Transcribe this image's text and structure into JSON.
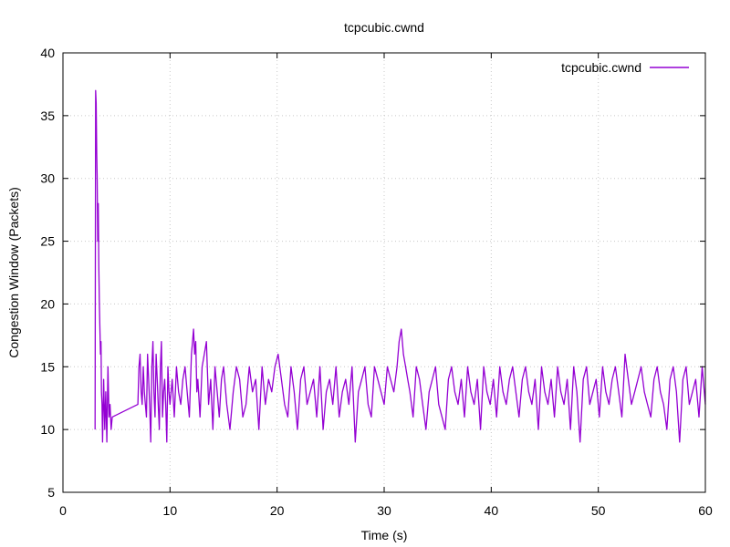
{
  "chart_data": {
    "type": "line",
    "title": "tcpcubic.cwnd",
    "xlabel": "Time (s)",
    "ylabel": "Congestion Window (Packets)",
    "xlim": [
      0,
      60
    ],
    "ylim": [
      5,
      40
    ],
    "xticks": [
      0,
      10,
      20,
      30,
      40,
      50,
      60
    ],
    "yticks": [
      5,
      10,
      15,
      20,
      25,
      30,
      35,
      40
    ],
    "grid": true,
    "legend_position": "top-right",
    "colors": {
      "series": "#9400d3",
      "grid": "#c8c8c8",
      "axis": "#000000"
    },
    "series": [
      {
        "name": "tcpcubic.cwnd",
        "x": [
          3.0,
          3.05,
          3.1,
          3.15,
          3.2,
          3.25,
          3.3,
          3.35,
          3.4,
          3.45,
          3.5,
          3.55,
          3.6,
          3.65,
          3.7,
          3.8,
          3.9,
          4.0,
          4.1,
          4.2,
          4.3,
          4.4,
          4.5,
          4.6,
          7.0,
          7.1,
          7.2,
          7.3,
          7.4,
          7.5,
          7.6,
          7.7,
          7.8,
          7.9,
          8.0,
          8.1,
          8.2,
          8.3,
          8.4,
          8.5,
          8.6,
          8.7,
          8.8,
          8.9,
          9.0,
          9.1,
          9.2,
          9.3,
          9.4,
          9.5,
          9.6,
          9.7,
          9.8,
          9.9,
          10.0,
          10.2,
          10.4,
          10.6,
          10.8,
          11.0,
          11.2,
          11.4,
          11.6,
          11.8,
          12.0,
          12.1,
          12.2,
          12.3,
          12.4,
          12.5,
          12.6,
          12.8,
          13.0,
          13.2,
          13.4,
          13.6,
          13.8,
          14.0,
          14.2,
          14.4,
          14.6,
          14.8,
          15.0,
          15.3,
          15.6,
          15.9,
          16.2,
          16.5,
          16.8,
          17.1,
          17.4,
          17.7,
          18.0,
          18.3,
          18.6,
          18.9,
          19.2,
          19.5,
          19.8,
          20.1,
          20.4,
          20.7,
          21.0,
          21.3,
          21.6,
          21.9,
          22.2,
          22.5,
          22.8,
          23.1,
          23.4,
          23.7,
          24.0,
          24.3,
          24.6,
          24.9,
          25.2,
          25.5,
          25.8,
          26.1,
          26.4,
          26.7,
          27.0,
          27.3,
          27.6,
          27.9,
          28.2,
          28.5,
          28.8,
          29.1,
          29.4,
          29.7,
          30.0,
          30.3,
          30.6,
          30.9,
          31.2,
          31.4,
          31.6,
          31.8,
          32.0,
          32.2,
          32.4,
          32.7,
          33.0,
          33.3,
          33.6,
          33.9,
          34.2,
          34.5,
          34.8,
          35.1,
          35.4,
          35.7,
          36.0,
          36.3,
          36.6,
          36.9,
          37.2,
          37.5,
          37.8,
          38.1,
          38.4,
          38.7,
          39.0,
          39.3,
          39.6,
          39.9,
          40.2,
          40.5,
          40.8,
          41.1,
          41.4,
          41.7,
          42.0,
          42.3,
          42.6,
          42.9,
          43.2,
          43.5,
          43.8,
          44.1,
          44.4,
          44.7,
          45.0,
          45.3,
          45.6,
          45.9,
          46.2,
          46.5,
          46.8,
          47.1,
          47.4,
          47.7,
          48.0,
          48.3,
          48.6,
          48.9,
          49.2,
          49.5,
          49.8,
          50.1,
          50.4,
          50.7,
          51.0,
          51.3,
          51.6,
          51.9,
          52.2,
          52.5,
          52.8,
          53.1,
          53.4,
          53.7,
          54.0,
          54.3,
          54.6,
          54.9,
          55.2,
          55.5,
          55.8,
          56.1,
          56.4,
          56.7,
          57.0,
          57.3,
          57.6,
          57.9,
          58.2,
          58.5,
          58.8,
          59.1,
          59.4,
          59.7,
          60.0
        ],
        "y": [
          10,
          37,
          36,
          32,
          30,
          25,
          28,
          23,
          20,
          18,
          16,
          17,
          13,
          12,
          9,
          14,
          10,
          13,
          9,
          15,
          11,
          12,
          10,
          11,
          12,
          15,
          16,
          13,
          12,
          15,
          13,
          12,
          11,
          16,
          14,
          12,
          9,
          15,
          17,
          13,
          11,
          16,
          14,
          12,
          10,
          15,
          17,
          11,
          13,
          14,
          12,
          9,
          15,
          13,
          12,
          14,
          11,
          15,
          13,
          12,
          14,
          15,
          13,
          11,
          16,
          17,
          18,
          16,
          17,
          13,
          14,
          11,
          15,
          16,
          17,
          12,
          14,
          10,
          15,
          13,
          11,
          14,
          15,
          12,
          10,
          13,
          15,
          14,
          11,
          12,
          15,
          13,
          14,
          10,
          15,
          12,
          14,
          13,
          15,
          16,
          14,
          12,
          11,
          15,
          13,
          10,
          14,
          15,
          12,
          13,
          14,
          11,
          15,
          10,
          13,
          14,
          12,
          15,
          11,
          13,
          14,
          12,
          15,
          9,
          13,
          14,
          15,
          12,
          11,
          15,
          14,
          13,
          12,
          15,
          14,
          13,
          15,
          17,
          18,
          16,
          15,
          14,
          13,
          11,
          15,
          14,
          12,
          10,
          13,
          14,
          15,
          12,
          11,
          10,
          14,
          15,
          13,
          12,
          14,
          11,
          15,
          13,
          12,
          14,
          10,
          15,
          13,
          12,
          14,
          11,
          15,
          13,
          12,
          14,
          15,
          13,
          11,
          14,
          15,
          13,
          12,
          14,
          10,
          15,
          13,
          12,
          14,
          11,
          15,
          13,
          12,
          14,
          10,
          15,
          13,
          9,
          14,
          15,
          12,
          13,
          14,
          11,
          15,
          13,
          12,
          14,
          15,
          13,
          11,
          16,
          14,
          12,
          13,
          14,
          15,
          13,
          12,
          11,
          14,
          15,
          13,
          12,
          10,
          14,
          15,
          13,
          9,
          14,
          15,
          12,
          13,
          14,
          11,
          15,
          12
        ]
      }
    ]
  }
}
